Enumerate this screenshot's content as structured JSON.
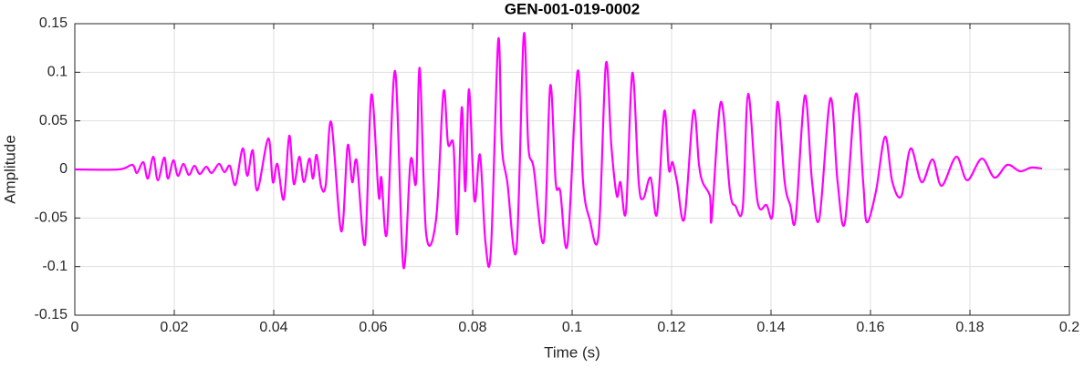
{
  "chart_data": {
    "type": "line",
    "title": "GEN-001-019-0002",
    "x_label": "Time (s)",
    "y_label": "Amplitude",
    "xlim": [
      0,
      0.2
    ],
    "xticks": [
      0,
      0.02,
      0.04,
      0.06,
      0.08,
      0.1,
      0.12,
      0.14,
      0.16,
      0.18,
      0.2
    ],
    "ylim": [
      -0.15,
      0.15
    ],
    "yticks": [
      -0.15,
      -0.1,
      -0.05,
      0,
      0.05,
      0.1,
      0.15
    ],
    "grid": true,
    "series": [
      {
        "color": "#ff00ff",
        "x": [
          0,
          0.0088,
          0.01156,
          0.01248,
          0.01376,
          0.01468,
          0.01578,
          0.0167,
          0.01798,
          0.01872,
          0.01982,
          0.02073,
          0.02183,
          0.02294,
          0.02404,
          0.02514,
          0.02642,
          0.02752,
          0.02899,
          0.03009,
          0.03119,
          0.03229,
          0.03376,
          0.03468,
          0.03578,
          0.0367,
          0.0389,
          0.03982,
          0.04073,
          0.04202,
          0.04312,
          0.04404,
          0.04514,
          0.04606,
          0.04716,
          0.04789,
          0.04862,
          0.04954,
          0.05046,
          0.05156,
          0.05358,
          0.05486,
          0.05578,
          0.0567,
          0.05835,
          0.05963,
          0.0611,
          0.06165,
          0.06275,
          0.0644,
          0.06606,
          0.06752,
          0.06862,
          0.06936,
          0.07064,
          0.07266,
          0.07413,
          0.07505,
          0.07615,
          0.07688,
          0.0778,
          0.07853,
          0.07927,
          0.08037,
          0.08147,
          0.08257,
          0.08367,
          0.08514,
          0.08587,
          0.08697,
          0.08881,
          0.09028,
          0.09119,
          0.09229,
          0.09431,
          0.0956,
          0.0967,
          0.09761,
          0.09908,
          0.1011,
          0.1022,
          0.10349,
          0.10532,
          0.10679,
          0.10789,
          0.10899,
          0.10972,
          0.11083,
          0.11211,
          0.11339,
          0.11431,
          0.11578,
          0.11706,
          0.11853,
          0.11945,
          0.12018,
          0.1211,
          0.12257,
          0.1244,
          0.1255,
          0.12624,
          0.12771,
          0.12807,
          0.12991,
          0.13174,
          0.13284,
          0.13431,
          0.13541,
          0.13725,
          0.13908,
          0.14037,
          0.14128,
          0.14275,
          0.14385,
          0.14495,
          0.14679,
          0.14826,
          0.14972,
          0.15193,
          0.15339,
          0.15486,
          0.15706,
          0.15853,
          0.15927,
          0.1611,
          0.16294,
          0.1644,
          0.16624,
          0.16807,
          0.17028,
          0.17248,
          0.17431,
          0.17725,
          0.17945,
          0.18239,
          0.18495,
          0.18752,
          0.19009,
          0.19229,
          0.1945
        ],
        "values": [
          0,
          0,
          0.0047,
          -0.0037,
          0.0075,
          -0.0094,
          0.0131,
          -0.0112,
          0.0122,
          -0.0094,
          0.0094,
          -0.0066,
          0.0056,
          -0.0056,
          0.0037,
          -0.0047,
          0.0028,
          -0.0037,
          0.0056,
          -0.0028,
          0.0037,
          -0.0159,
          0.0216,
          -0.0066,
          0.0197,
          -0.0216,
          0.0319,
          -0.0131,
          0.0056,
          -0.0309,
          0.0347,
          -0.015,
          0.0131,
          -0.0131,
          0.0112,
          -0.0094,
          0.015,
          -0.0178,
          -0.0159,
          0.0487,
          -0.0637,
          0.0244,
          -0.0131,
          0.0084,
          -0.0769,
          0.0769,
          -0.0272,
          -0.0084,
          -0.0656,
          0.1012,
          -0.1003,
          0.0094,
          -0.0131,
          0.1041,
          -0.0656,
          -0.0506,
          0.0797,
          0.0262,
          0.0244,
          -0.0665,
          0.0637,
          -0.0225,
          0.0825,
          -0.0319,
          0.015,
          -0.075,
          -0.0834,
          0.1331,
          0.0244,
          -0.0131,
          -0.0825,
          0.1387,
          0.0244,
          0.0009,
          -0.0741,
          0.0862,
          -0.0131,
          -0.0225,
          -0.0769,
          0.1012,
          -0.0131,
          -0.0506,
          -0.0675,
          0.1087,
          0.0244,
          -0.0272,
          -0.0131,
          -0.0431,
          0.0994,
          -0.0131,
          -0.03,
          -0.0084,
          -0.0459,
          0.06,
          0,
          0.0075,
          -0.0131,
          -0.0506,
          0.06,
          0.0056,
          -0.0131,
          -0.0272,
          -0.0506,
          0.0694,
          -0.0225,
          -0.0375,
          -0.0394,
          0.0778,
          -0.0319,
          -0.0366,
          -0.0441,
          0.0694,
          -0.0131,
          -0.0366,
          -0.0506,
          0.0759,
          -0.0131,
          -0.0506,
          0.0731,
          -0.0131,
          -0.0544,
          0.0778,
          -0.0131,
          -0.0544,
          -0.0225,
          0.0337,
          -0.0131,
          -0.0272,
          0.0216,
          -0.0131,
          0.0103,
          -0.0169,
          0.0131,
          -0.0112,
          0.0112,
          -0.0084,
          0.0047,
          -0.0019,
          0.0019,
          0.0009
        ]
      }
    ]
  }
}
